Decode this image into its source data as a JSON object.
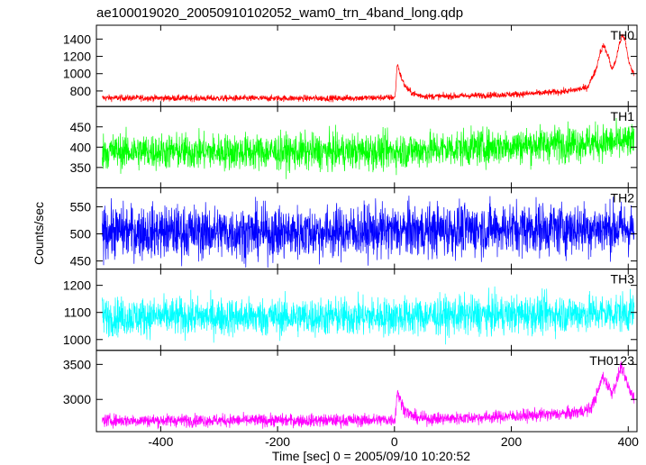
{
  "chart_data": {
    "type": "line",
    "title": "ae100019020_20050910102052_wam0_trn_4band_long.qdp",
    "xlabel": "Time [sec] 0 = 2005/09/10 10:20:52",
    "ylabel": "Counts/sec",
    "xlim": [
      -510,
      415
    ],
    "xticks": [
      -400,
      -200,
      0,
      200,
      400
    ],
    "panels": [
      {
        "name": "TH0",
        "color": "#ff0000",
        "ylim": [
          620,
          1560
        ],
        "yticks": [
          800,
          1000,
          1200,
          1400
        ],
        "baseline": [
          [
            -500,
            720
          ],
          [
            -300,
            715
          ],
          [
            -100,
            715
          ],
          [
            0,
            725
          ],
          [
            100,
            740
          ],
          [
            200,
            760
          ],
          [
            250,
            775
          ],
          [
            300,
            800
          ],
          [
            330,
            840
          ],
          [
            345,
            1050
          ],
          [
            352,
            1250
          ],
          [
            358,
            1330
          ],
          [
            366,
            1200
          ],
          [
            372,
            1050
          ],
          [
            378,
            1130
          ],
          [
            385,
            1350
          ],
          [
            390,
            1440
          ],
          [
            395,
            1380
          ],
          [
            400,
            1180
          ],
          [
            405,
            1050
          ],
          [
            410,
            1000
          ]
        ],
        "noise": 18,
        "flares": [
          {
            "t": 5,
            "peak": 400,
            "rise": 4,
            "decay": 12
          }
        ]
      },
      {
        "name": "TH1",
        "color": "#00ff00",
        "ylim": [
          300,
          500
        ],
        "yticks": [
          350,
          400,
          450
        ],
        "baseline": [
          [
            -500,
            390
          ],
          [
            -200,
            388
          ],
          [
            0,
            390
          ],
          [
            150,
            400
          ],
          [
            300,
            410
          ],
          [
            410,
            412
          ]
        ],
        "noise": 22,
        "flares": []
      },
      {
        "name": "TH2",
        "color": "#0000ff",
        "ylim": [
          435,
          585
        ],
        "yticks": [
          450,
          500,
          550
        ],
        "baseline": [
          [
            -500,
            505
          ],
          [
            -200,
            502
          ],
          [
            0,
            505
          ],
          [
            200,
            510
          ],
          [
            410,
            510
          ]
        ],
        "noise": 24,
        "flares": []
      },
      {
        "name": "TH3",
        "color": "#00ffff",
        "ylim": [
          960,
          1260
        ],
        "yticks": [
          1000,
          1100,
          1200
        ],
        "baseline": [
          [
            -500,
            1085
          ],
          [
            -200,
            1083
          ],
          [
            0,
            1085
          ],
          [
            200,
            1092
          ],
          [
            410,
            1100
          ]
        ],
        "noise": 35,
        "flares": []
      },
      {
        "name": "TH0123",
        "color": "#ff00ff",
        "ylim": [
          2540,
          3700
        ],
        "yticks": [
          3000,
          3500
        ],
        "baseline": [
          [
            -500,
            2700
          ],
          [
            -300,
            2700
          ],
          [
            -100,
            2700
          ],
          [
            0,
            2710
          ],
          [
            100,
            2730
          ],
          [
            200,
            2760
          ],
          [
            300,
            2800
          ],
          [
            335,
            2860
          ],
          [
            348,
            3100
          ],
          [
            356,
            3330
          ],
          [
            364,
            3220
          ],
          [
            372,
            3100
          ],
          [
            380,
            3250
          ],
          [
            388,
            3480
          ],
          [
            394,
            3330
          ],
          [
            400,
            3180
          ],
          [
            405,
            3080
          ],
          [
            410,
            3040
          ]
        ],
        "noise": 45,
        "flares": [
          {
            "t": 5,
            "peak": 420,
            "rise": 4,
            "decay": 12
          }
        ]
      }
    ]
  }
}
